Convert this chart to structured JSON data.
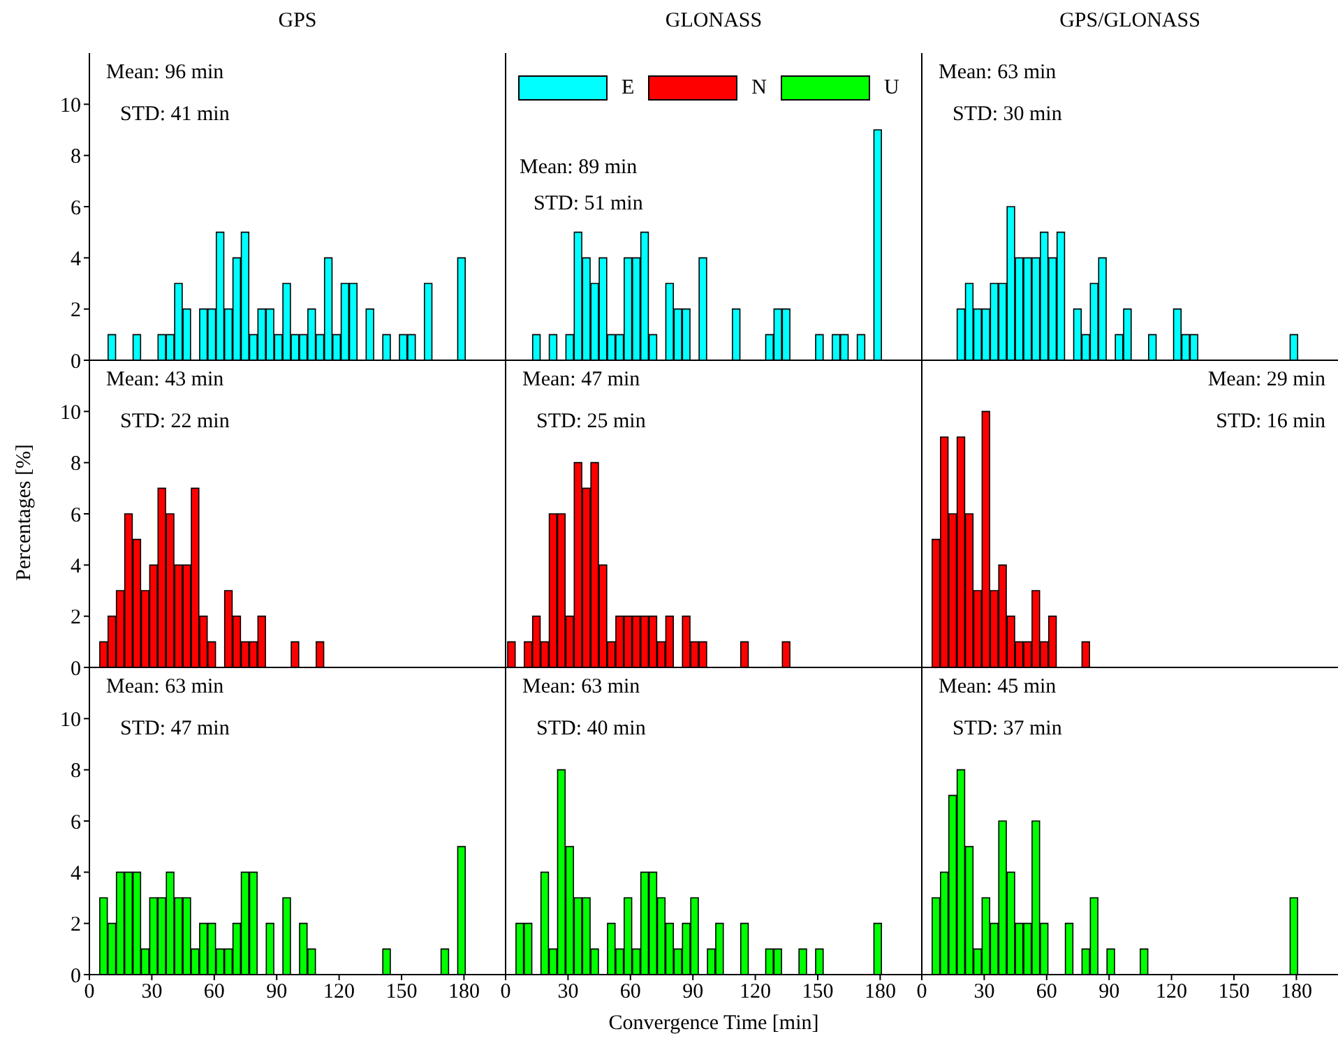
{
  "chart_data": [
    {
      "type": "histogram",
      "title": "GPS",
      "series": [
        {
          "color": "#00ffff",
          "values": [
            0,
            0,
            1,
            0,
            0,
            1,
            0,
            0,
            1,
            1,
            3,
            2,
            0,
            2,
            2,
            5,
            2,
            4,
            5,
            1,
            2,
            2,
            1,
            3,
            1,
            1,
            2,
            1,
            4,
            1,
            3,
            3,
            0,
            2,
            0,
            1,
            0,
            1,
            1,
            0,
            3,
            0,
            0,
            0,
            4
          ]
        }
      ],
      "bins": [
        1,
        5,
        9,
        13,
        17,
        21,
        25,
        29,
        33,
        37,
        41,
        45,
        49,
        53,
        57,
        61,
        65,
        69,
        73,
        77,
        81,
        85,
        89,
        93,
        97,
        101,
        105,
        109,
        113,
        117,
        121,
        125,
        129,
        133,
        137,
        141,
        145,
        149,
        153,
        157,
        161,
        165,
        169,
        173,
        177,
        181
      ],
      "xlim": [
        0,
        200
      ],
      "xticks": [
        0,
        30,
        60,
        90,
        120,
        150,
        180
      ],
      "ylim": [
        0,
        12
      ],
      "yticks": [
        0,
        2,
        4,
        6,
        8,
        10
      ],
      "tick_labels": "y",
      "annotations": [
        "Mean: 96 min",
        "STD: 41 min"
      ]
    },
    {
      "type": "histogram",
      "title": "GLONASS",
      "series": [
        {
          "name": "E",
          "color": "#00ffff",
          "values": [
            0,
            0,
            0,
            1,
            0,
            1,
            0,
            1,
            5,
            4,
            3,
            4,
            1,
            1,
            4,
            4,
            5,
            1,
            0,
            3,
            2,
            2,
            0,
            4,
            0,
            0,
            0,
            2,
            0,
            0,
            0,
            1,
            2,
            2,
            0,
            0,
            0,
            1,
            0,
            1,
            1,
            0,
            1,
            0,
            9
          ]
        }
      ],
      "bins": [
        1,
        5,
        9,
        13,
        17,
        21,
        25,
        29,
        33,
        37,
        41,
        45,
        49,
        53,
        57,
        61,
        65,
        69,
        73,
        77,
        81,
        85,
        89,
        93,
        97,
        101,
        105,
        109,
        113,
        117,
        121,
        125,
        129,
        133,
        137,
        141,
        145,
        149,
        153,
        157,
        161,
        165,
        169,
        173,
        177,
        181
      ],
      "xlim": [
        0,
        200
      ],
      "xticks": [
        0,
        30,
        60,
        90,
        120,
        150,
        180
      ],
      "ylim": [
        0,
        12
      ],
      "yticks": [
        0,
        2,
        4,
        6,
        8,
        10
      ],
      "tick_labels": false,
      "legend": "top",
      "annotations": [
        "Mean: 89 min",
        "STD: 51 min"
      ]
    },
    {
      "type": "histogram",
      "title": "GPS/GLONASS",
      "series": [
        {
          "color": "#00ffff",
          "values": [
            0,
            0,
            0,
            0,
            2,
            3,
            2,
            2,
            3,
            3,
            6,
            4,
            4,
            4,
            5,
            4,
            5,
            0,
            2,
            1,
            3,
            4,
            0,
            1,
            2,
            0,
            0,
            1,
            0,
            0,
            2,
            1,
            1,
            0,
            0,
            0,
            0,
            0,
            0,
            0,
            0,
            0,
            0,
            0,
            1
          ]
        }
      ],
      "bins": [
        1,
        5,
        9,
        13,
        17,
        21,
        25,
        29,
        33,
        37,
        41,
        45,
        49,
        53,
        57,
        61,
        65,
        69,
        73,
        77,
        81,
        85,
        89,
        93,
        97,
        101,
        105,
        109,
        113,
        117,
        121,
        125,
        129,
        133,
        137,
        141,
        145,
        149,
        153,
        157,
        161,
        165,
        169,
        173,
        177,
        181
      ],
      "xlim": [
        0,
        200
      ],
      "xticks": [
        0,
        30,
        60,
        90,
        120,
        150,
        180
      ],
      "ylim": [
        0,
        12
      ],
      "yticks": [
        0,
        2,
        4,
        6,
        8,
        10
      ],
      "tick_labels": false,
      "annotations": [
        "Mean: 63 min",
        "STD: 30 min"
      ]
    },
    {
      "type": "histogram",
      "ylabel": "Percentages [%]",
      "series": [
        {
          "color": "#ff0000",
          "values": [
            0,
            1,
            2,
            3,
            6,
            5,
            3,
            4,
            7,
            6,
            4,
            4,
            7,
            2,
            1,
            0,
            3,
            2,
            1,
            1,
            2,
            0,
            0,
            0,
            1,
            0,
            0,
            1,
            0,
            0,
            0,
            0,
            0,
            0,
            0,
            0,
            0,
            0,
            0,
            0,
            0,
            0,
            0,
            0,
            0
          ]
        }
      ],
      "bins": [
        1,
        5,
        9,
        13,
        17,
        21,
        25,
        29,
        33,
        37,
        41,
        45,
        49,
        53,
        57,
        61,
        65,
        69,
        73,
        77,
        81,
        85,
        89,
        93,
        97,
        101,
        105,
        109,
        113,
        117,
        121,
        125,
        129,
        133,
        137,
        141,
        145,
        149,
        153,
        157,
        161,
        165,
        169,
        173,
        177,
        181
      ],
      "xlim": [
        0,
        200
      ],
      "xticks": [
        0,
        30,
        60,
        90,
        120,
        150,
        180
      ],
      "ylim": [
        0,
        12
      ],
      "yticks": [
        0,
        2,
        4,
        6,
        8,
        10
      ],
      "tick_labels": "y",
      "annotations": [
        "Mean: 43 min",
        "STD: 22 min"
      ]
    },
    {
      "type": "histogram",
      "series": [
        {
          "name": "N",
          "color": "#ff0000",
          "values": [
            1,
            0,
            1,
            2,
            1,
            6,
            6,
            2,
            8,
            7,
            8,
            4,
            1,
            2,
            2,
            2,
            2,
            2,
            1,
            2,
            0,
            2,
            1,
            1,
            0,
            0,
            0,
            0,
            1,
            0,
            0,
            0,
            0,
            1,
            0,
            0,
            0,
            0,
            0,
            0,
            0,
            0,
            0,
            0,
            0
          ]
        }
      ],
      "bins": [
        1,
        5,
        9,
        13,
        17,
        21,
        25,
        29,
        33,
        37,
        41,
        45,
        49,
        53,
        57,
        61,
        65,
        69,
        73,
        77,
        81,
        85,
        89,
        93,
        97,
        101,
        105,
        109,
        113,
        117,
        121,
        125,
        129,
        133,
        137,
        141,
        145,
        149,
        153,
        157,
        161,
        165,
        169,
        173,
        177,
        181
      ],
      "xlim": [
        0,
        200
      ],
      "xticks": [
        0,
        30,
        60,
        90,
        120,
        150,
        180
      ],
      "ylim": [
        0,
        12
      ],
      "yticks": [
        0,
        2,
        4,
        6,
        8,
        10
      ],
      "tick_labels": false,
      "annotations": [
        "Mean: 47 min",
        "STD: 25 min"
      ]
    },
    {
      "type": "histogram",
      "series": [
        {
          "color": "#ff0000",
          "values": [
            0,
            5,
            9,
            6,
            9,
            6,
            3,
            10,
            3,
            4,
            2,
            1,
            1,
            3,
            1,
            2,
            0,
            0,
            0,
            1,
            0,
            0,
            0,
            0,
            0,
            0,
            0,
            0,
            0,
            0,
            0,
            0,
            0,
            0,
            0,
            0,
            0,
            0,
            0,
            0,
            0,
            0,
            0,
            0,
            0
          ]
        }
      ],
      "bins": [
        1,
        5,
        9,
        13,
        17,
        21,
        25,
        29,
        33,
        37,
        41,
        45,
        49,
        53,
        57,
        61,
        65,
        69,
        73,
        77,
        81,
        85,
        89,
        93,
        97,
        101,
        105,
        109,
        113,
        117,
        121,
        125,
        129,
        133,
        137,
        141,
        145,
        149,
        153,
        157,
        161,
        165,
        169,
        173,
        177,
        181
      ],
      "xlim": [
        0,
        200
      ],
      "xticks": [
        0,
        30,
        60,
        90,
        120,
        150,
        180
      ],
      "ylim": [
        0,
        12
      ],
      "yticks": [
        0,
        2,
        4,
        6,
        8,
        10
      ],
      "tick_labels": false,
      "annotations": [
        "Mean: 29 min",
        "STD: 16 min"
      ]
    },
    {
      "type": "histogram",
      "series": [
        {
          "color": "#00ff00",
          "values": [
            0,
            3,
            2,
            4,
            4,
            4,
            1,
            3,
            3,
            4,
            3,
            3,
            1,
            2,
            2,
            1,
            1,
            2,
            4,
            4,
            0,
            2,
            0,
            3,
            0,
            2,
            1,
            0,
            0,
            0,
            0,
            0,
            0,
            0,
            0,
            1,
            0,
            0,
            0,
            0,
            0,
            0,
            1,
            0,
            5
          ]
        }
      ],
      "bins": [
        1,
        5,
        9,
        13,
        17,
        21,
        25,
        29,
        33,
        37,
        41,
        45,
        49,
        53,
        57,
        61,
        65,
        69,
        73,
        77,
        81,
        85,
        89,
        93,
        97,
        101,
        105,
        109,
        113,
        117,
        121,
        125,
        129,
        133,
        137,
        141,
        145,
        149,
        153,
        157,
        161,
        165,
        169,
        173,
        177,
        181
      ],
      "xlim": [
        0,
        200
      ],
      "xticks": [
        0,
        30,
        60,
        90,
        120,
        150,
        180
      ],
      "ylim": [
        0,
        12
      ],
      "yticks": [
        0,
        2,
        4,
        6,
        8,
        10
      ],
      "annotations": [
        "Mean: 63 min",
        "STD: 47 min"
      ]
    },
    {
      "type": "histogram",
      "xlabel": "Convergence Time [min]",
      "series": [
        {
          "name": "U",
          "color": "#00ff00",
          "values": [
            0,
            2,
            2,
            0,
            4,
            1,
            8,
            5,
            3,
            3,
            1,
            0,
            2,
            1,
            3,
            1,
            4,
            4,
            3,
            2,
            1,
            2,
            3,
            0,
            1,
            2,
            0,
            0,
            2,
            0,
            0,
            1,
            1,
            0,
            0,
            1,
            0,
            1,
            0,
            0,
            0,
            0,
            0,
            0,
            2
          ]
        }
      ],
      "bins": [
        1,
        5,
        9,
        13,
        17,
        21,
        25,
        29,
        33,
        37,
        41,
        45,
        49,
        53,
        57,
        61,
        65,
        69,
        73,
        77,
        81,
        85,
        89,
        93,
        97,
        101,
        105,
        109,
        113,
        117,
        121,
        125,
        129,
        133,
        137,
        141,
        145,
        149,
        153,
        157,
        161,
        165,
        169,
        173,
        177,
        181
      ],
      "xlim": [
        0,
        200
      ],
      "xticks": [
        0,
        30,
        60,
        90,
        120,
        150,
        180
      ],
      "ylim": [
        0,
        12
      ],
      "yticks": [
        0,
        2,
        4,
        6,
        8,
        10
      ],
      "tick_labels": "x",
      "annotations": [
        "Mean: 63 min",
        "STD: 40 min"
      ]
    },
    {
      "type": "histogram",
      "series": [
        {
          "color": "#00ff00",
          "values": [
            0,
            3,
            4,
            7,
            8,
            5,
            1,
            3,
            2,
            6,
            4,
            2,
            2,
            6,
            2,
            0,
            0,
            2,
            0,
            1,
            3,
            0,
            1,
            0,
            0,
            0,
            1,
            0,
            0,
            0,
            0,
            0,
            0,
            0,
            0,
            0,
            0,
            0,
            0,
            0,
            0,
            0,
            0,
            0,
            3
          ]
        }
      ],
      "bins": [
        1,
        5,
        9,
        13,
        17,
        21,
        25,
        29,
        33,
        37,
        41,
        45,
        49,
        53,
        57,
        61,
        65,
        69,
        73,
        77,
        81,
        85,
        89,
        93,
        97,
        101,
        105,
        109,
        113,
        117,
        121,
        125,
        129,
        133,
        137,
        141,
        145,
        149,
        153,
        157,
        161,
        165,
        169,
        173,
        177,
        181
      ],
      "xlim": [
        0,
        200
      ],
      "xticks": [
        0,
        30,
        60,
        90,
        120,
        150,
        180
      ],
      "ylim": [
        0,
        12
      ],
      "yticks": [
        0,
        2,
        4,
        6,
        8,
        10
      ],
      "tick_labels": "x",
      "annotations": [
        "Mean: 45 min",
        "STD: 37 min"
      ]
    }
  ]
}
